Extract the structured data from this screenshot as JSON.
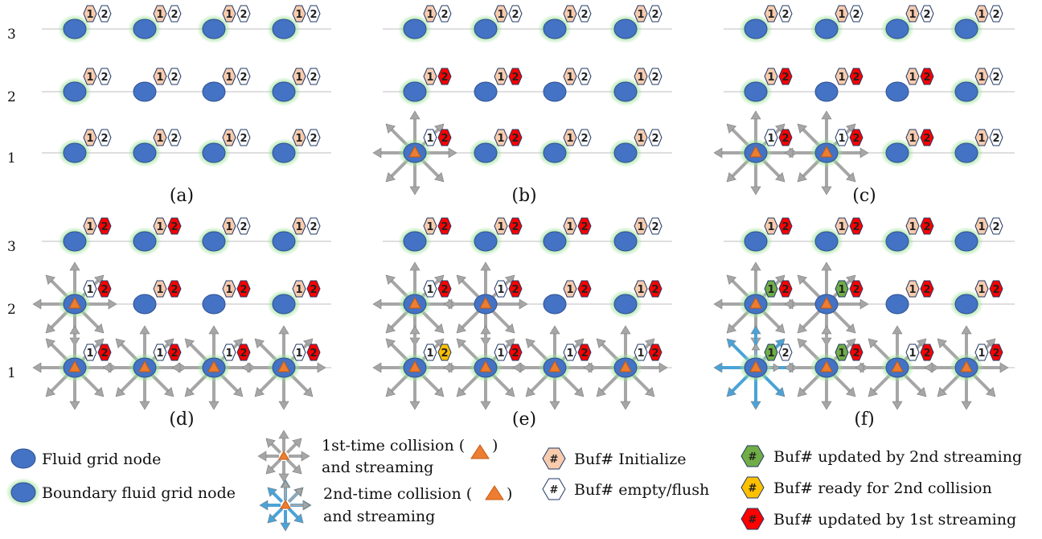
{
  "colors": {
    "node": "#4472c4",
    "node_stroke": "#2f528f",
    "glow": "#9fe29a",
    "init": "#f8cbad",
    "empty": "#ffffff",
    "updated1": "#ff0000",
    "updated2": "#70ad47",
    "ready2": "#ffc000",
    "arrow1": "#a6a6a6",
    "arrow2": "#4aa3d8",
    "triangle": "#ed7d31"
  },
  "row_labels": [
    "3",
    "2",
    "1"
  ],
  "panels": [
    {
      "caption": "(a)",
      "rows": [
        {
          "nodes": [
            {
              "boundary": true,
              "b1": "init",
              "b2": "empty"
            },
            {
              "boundary": true,
              "b1": "init",
              "b2": "empty"
            },
            {
              "boundary": true,
              "b1": "init",
              "b2": "empty"
            },
            {
              "boundary": true,
              "b1": "init",
              "b2": "empty"
            }
          ]
        },
        {
          "nodes": [
            {
              "boundary": true,
              "b1": "init",
              "b2": "empty"
            },
            {
              "boundary": false,
              "b1": "init",
              "b2": "empty"
            },
            {
              "boundary": false,
              "b1": "init",
              "b2": "empty"
            },
            {
              "boundary": true,
              "b1": "init",
              "b2": "empty"
            }
          ]
        },
        {
          "nodes": [
            {
              "boundary": true,
              "b1": "init",
              "b2": "empty"
            },
            {
              "boundary": true,
              "b1": "init",
              "b2": "empty"
            },
            {
              "boundary": true,
              "b1": "init",
              "b2": "empty"
            },
            {
              "boundary": true,
              "b1": "init",
              "b2": "empty"
            }
          ]
        }
      ]
    },
    {
      "caption": "(b)",
      "rows": [
        {
          "nodes": [
            {
              "boundary": true,
              "b1": "init",
              "b2": "empty"
            },
            {
              "boundary": true,
              "b1": "init",
              "b2": "empty"
            },
            {
              "boundary": true,
              "b1": "init",
              "b2": "empty"
            },
            {
              "boundary": true,
              "b1": "init",
              "b2": "empty"
            }
          ]
        },
        {
          "nodes": [
            {
              "boundary": true,
              "b1": "init",
              "b2": "updated1"
            },
            {
              "boundary": false,
              "b1": "init",
              "b2": "updated1"
            },
            {
              "boundary": false,
              "b1": "init",
              "b2": "empty"
            },
            {
              "boundary": true,
              "b1": "init",
              "b2": "empty"
            }
          ]
        },
        {
          "nodes": [
            {
              "boundary": true,
              "b1": "empty",
              "b2": "updated1",
              "star": "grey"
            },
            {
              "boundary": true,
              "b1": "init",
              "b2": "updated1"
            },
            {
              "boundary": true,
              "b1": "init",
              "b2": "empty"
            },
            {
              "boundary": true,
              "b1": "init",
              "b2": "empty"
            }
          ]
        }
      ]
    },
    {
      "caption": "(c)",
      "rows": [
        {
          "nodes": [
            {
              "boundary": true,
              "b1": "init",
              "b2": "empty"
            },
            {
              "boundary": true,
              "b1": "init",
              "b2": "empty"
            },
            {
              "boundary": true,
              "b1": "init",
              "b2": "empty"
            },
            {
              "boundary": true,
              "b1": "init",
              "b2": "empty"
            }
          ]
        },
        {
          "nodes": [
            {
              "boundary": true,
              "b1": "init",
              "b2": "updated1"
            },
            {
              "boundary": false,
              "b1": "init",
              "b2": "updated1"
            },
            {
              "boundary": false,
              "b1": "init",
              "b2": "updated1"
            },
            {
              "boundary": true,
              "b1": "init",
              "b2": "empty"
            }
          ]
        },
        {
          "nodes": [
            {
              "boundary": true,
              "b1": "empty",
              "b2": "updated1",
              "star": "grey"
            },
            {
              "boundary": true,
              "b1": "empty",
              "b2": "updated1",
              "star": "grey"
            },
            {
              "boundary": true,
              "b1": "init",
              "b2": "updated1"
            },
            {
              "boundary": true,
              "b1": "init",
              "b2": "empty"
            }
          ]
        }
      ]
    },
    {
      "caption": "(d)",
      "rows": [
        {
          "nodes": [
            {
              "boundary": true,
              "b1": "init",
              "b2": "updated1"
            },
            {
              "boundary": true,
              "b1": "init",
              "b2": "updated1"
            },
            {
              "boundary": true,
              "b1": "init",
              "b2": "empty"
            },
            {
              "boundary": true,
              "b1": "init",
              "b2": "empty"
            }
          ]
        },
        {
          "nodes": [
            {
              "boundary": true,
              "b1": "empty",
              "b2": "updated1",
              "star": "grey"
            },
            {
              "boundary": false,
              "b1": "init",
              "b2": "updated1"
            },
            {
              "boundary": false,
              "b1": "init",
              "b2": "updated1"
            },
            {
              "boundary": true,
              "b1": "init",
              "b2": "updated1"
            }
          ]
        },
        {
          "nodes": [
            {
              "boundary": true,
              "b1": "empty",
              "b2": "updated1",
              "star": "grey"
            },
            {
              "boundary": true,
              "b1": "empty",
              "b2": "updated1",
              "star": "grey"
            },
            {
              "boundary": true,
              "b1": "empty",
              "b2": "updated1",
              "star": "grey"
            },
            {
              "boundary": true,
              "b1": "empty",
              "b2": "updated1",
              "star": "grey"
            }
          ]
        }
      ]
    },
    {
      "caption": "(e)",
      "rows": [
        {
          "nodes": [
            {
              "boundary": true,
              "b1": "init",
              "b2": "updated1"
            },
            {
              "boundary": true,
              "b1": "init",
              "b2": "updated1"
            },
            {
              "boundary": true,
              "b1": "init",
              "b2": "updated1"
            },
            {
              "boundary": true,
              "b1": "init",
              "b2": "empty"
            }
          ]
        },
        {
          "nodes": [
            {
              "boundary": true,
              "b1": "empty",
              "b2": "updated1",
              "star": "grey"
            },
            {
              "boundary": false,
              "b1": "empty",
              "b2": "updated1",
              "star": "grey"
            },
            {
              "boundary": false,
              "b1": "init",
              "b2": "updated1"
            },
            {
              "boundary": true,
              "b1": "init",
              "b2": "updated1"
            }
          ]
        },
        {
          "nodes": [
            {
              "boundary": true,
              "b1": "empty",
              "b2": "ready2",
              "star": "grey"
            },
            {
              "boundary": true,
              "b1": "empty",
              "b2": "updated1",
              "star": "grey"
            },
            {
              "boundary": true,
              "b1": "empty",
              "b2": "updated1",
              "star": "grey"
            },
            {
              "boundary": true,
              "b1": "empty",
              "b2": "updated1",
              "star": "grey"
            }
          ]
        }
      ]
    },
    {
      "caption": "(f)",
      "rows": [
        {
          "nodes": [
            {
              "boundary": true,
              "b1": "init",
              "b2": "updated1"
            },
            {
              "boundary": true,
              "b1": "init",
              "b2": "updated1"
            },
            {
              "boundary": true,
              "b1": "init",
              "b2": "updated1"
            },
            {
              "boundary": true,
              "b1": "init",
              "b2": "empty"
            }
          ]
        },
        {
          "nodes": [
            {
              "boundary": true,
              "b1": "updated2",
              "b2": "updated1",
              "star": "grey"
            },
            {
              "boundary": false,
              "b1": "updated2",
              "b2": "updated1",
              "star": "grey"
            },
            {
              "boundary": false,
              "b1": "init",
              "b2": "updated1"
            },
            {
              "boundary": true,
              "b1": "init",
              "b2": "updated1"
            }
          ]
        },
        {
          "nodes": [
            {
              "boundary": true,
              "b1": "updated2",
              "b2": "empty",
              "star": "blue"
            },
            {
              "boundary": true,
              "b1": "updated2",
              "b2": "updated1",
              "star": "grey"
            },
            {
              "boundary": true,
              "b1": "empty",
              "b2": "updated1",
              "star": "grey"
            },
            {
              "boundary": true,
              "b1": "empty",
              "b2": "updated1",
              "star": "grey"
            }
          ]
        }
      ]
    }
  ],
  "legend": {
    "fluid_node": "Fluid grid node",
    "boundary_node": "Boundary fluid grid node",
    "collision1_line1": "1st-time collision (",
    "collision1_line1_end": ")",
    "collision1_line2": "and streaming",
    "collision2_line1": "2nd-time collision (",
    "collision2_line1_end": ")",
    "collision2_line2": "and streaming",
    "badge_symbol": "#",
    "buf_init": "Buf# Initialize",
    "buf_empty": "Buf# empty/flush",
    "buf_updated2": "Buf# updated by 2nd streaming",
    "buf_ready2": "Buf# ready for 2nd collision",
    "buf_updated1": "Buf# updated by 1st streaming"
  }
}
